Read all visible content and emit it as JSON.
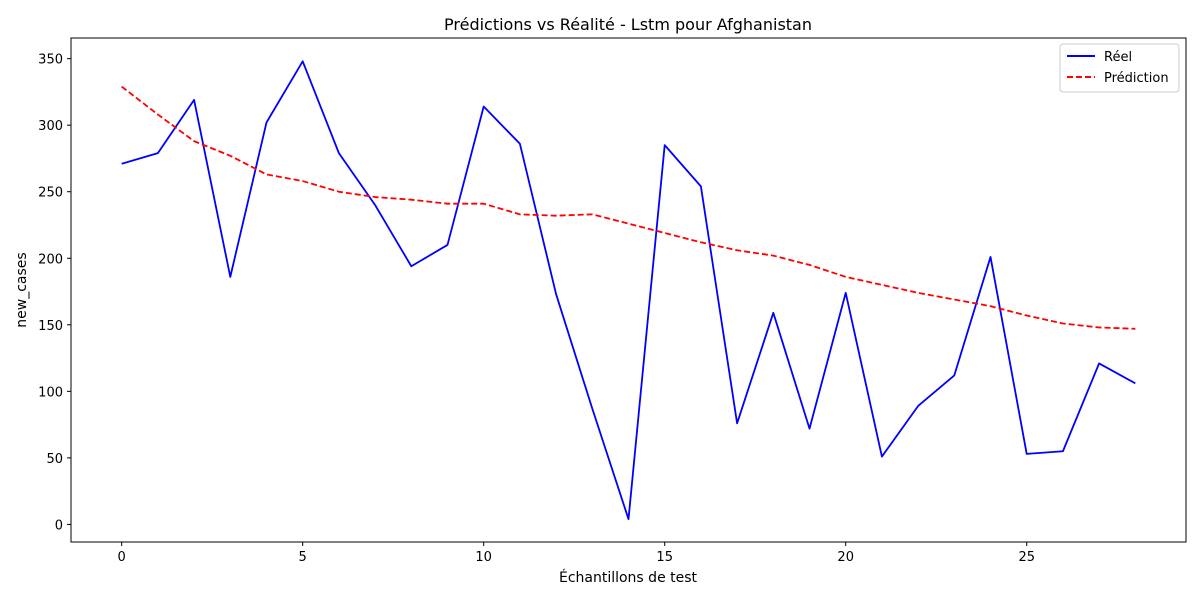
{
  "chart_data": {
    "type": "line",
    "title": "Prédictions vs Réalité - Lstm pour Afghanistan",
    "xlabel": "Échantillons de test",
    "ylabel": "new_cases",
    "xlim": [
      -1.4,
      29.4
    ],
    "ylim": [
      -13.2,
      365.5
    ],
    "xticks": [
      0,
      5,
      10,
      15,
      20,
      25
    ],
    "yticks": [
      0,
      50,
      100,
      150,
      200,
      250,
      300,
      350
    ],
    "grid": false,
    "legend_position": "top-right",
    "x": [
      0,
      1,
      2,
      3,
      4,
      5,
      6,
      7,
      8,
      9,
      10,
      11,
      12,
      13,
      14,
      15,
      16,
      17,
      18,
      19,
      20,
      21,
      22,
      23,
      24,
      25,
      26,
      27,
      28
    ],
    "series": [
      {
        "name": "Réel",
        "color": "#0000ff",
        "style": "solid",
        "values": [
          271,
          279,
          319,
          186,
          302,
          348,
          279,
          240,
          194,
          210,
          314,
          286,
          173,
          87,
          4,
          285,
          254,
          76,
          159,
          72,
          174,
          51,
          89,
          112,
          201,
          53,
          55,
          121,
          106
        ]
      },
      {
        "name": "Prédiction",
        "color": "#ff0000",
        "style": "dashed",
        "values": [
          329,
          308,
          288,
          277,
          263,
          258,
          250,
          246,
          244,
          241,
          241,
          233,
          232,
          233,
          226,
          219,
          212,
          206,
          202,
          195,
          186,
          180,
          174,
          169,
          164,
          157,
          151,
          148,
          147
        ]
      }
    ]
  }
}
